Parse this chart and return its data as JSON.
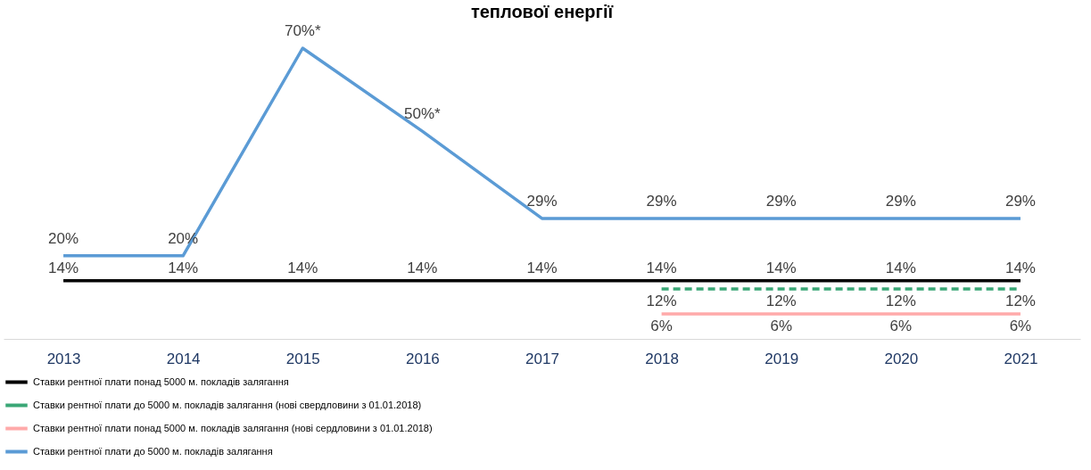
{
  "chart_data": {
    "type": "line",
    "title": "теплової енергії",
    "categories": [
      "2013",
      "2014",
      "2015",
      "2016",
      "2017",
      "2018",
      "2019",
      "2020",
      "2021"
    ],
    "series": [
      {
        "name": "Ставки рентної  плати понад  5000 м. покладів  залягання",
        "color": "#000000",
        "values": [
          14,
          14,
          14,
          14,
          14,
          14,
          14,
          14,
          14
        ],
        "value_labels": [
          "14%",
          "14%",
          "14%",
          "14%",
          "14%",
          "14%",
          "14%",
          "14%",
          "14%"
        ]
      },
      {
        "name": "Ставки рентної  плати до  5000 м. покладів  залягання (нові свердловини  з 01.01.2018)",
        "color": "#3aa776",
        "line_style": "dashed",
        "values": [
          null,
          null,
          null,
          null,
          null,
          12,
          12,
          12,
          12
        ],
        "value_labels": [
          null,
          null,
          null,
          null,
          null,
          "12%",
          "12%",
          "12%",
          "12%"
        ]
      },
      {
        "name": "Ставки рентної  плати понад  5000 м. покладів  залягання  (нові сердловини  з 01.01.2018)",
        "color": "#ffaaaa",
        "values": [
          null,
          null,
          null,
          null,
          null,
          6,
          6,
          6,
          6
        ],
        "value_labels": [
          null,
          null,
          null,
          null,
          null,
          "6%",
          "6%",
          "6%",
          "6%"
        ]
      },
      {
        "name": "Ставки рентної  плати до 5000 м. покладів  залягання",
        "color": "#5b9bd5",
        "values": [
          20,
          20,
          70,
          50,
          29,
          29,
          29,
          29,
          29
        ],
        "value_labels": [
          "20%",
          "20%",
          "70%*",
          "50%*",
          "29%",
          "29%",
          "29%",
          "29%",
          "29%"
        ]
      }
    ],
    "legend": "bottom",
    "marker": "none"
  }
}
